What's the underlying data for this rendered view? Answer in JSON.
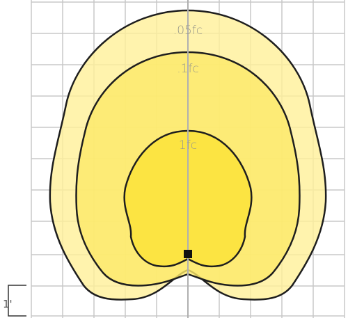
{
  "contours": [
    {
      "label": ".05fc"
    },
    {
      "label": ".1fc"
    },
    {
      "label": "1fc"
    }
  ],
  "scale": {
    "label": "1'"
  }
}
